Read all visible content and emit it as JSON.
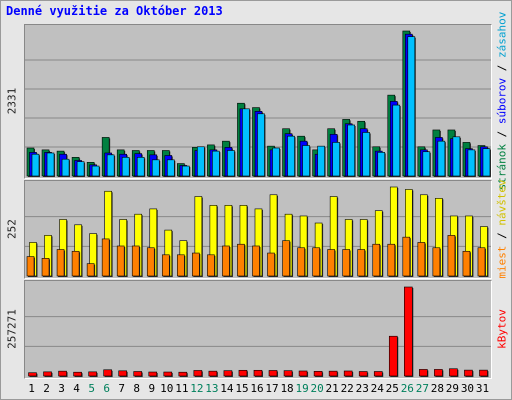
{
  "title": "Denné využitie za Október 2013",
  "colors": {
    "title": "#0000ff",
    "pages": "#008040",
    "files": "#0000ff",
    "hits": "#00c0ff",
    "visits": "#ff8000",
    "sites": "#ffff00",
    "kbytes": "#ff0000",
    "weekend": "#00805c",
    "weekday": "#000000"
  },
  "legend": {
    "pages": "stránok",
    "files": "súborov",
    "hits": "zásahov",
    "visits": "návštev",
    "sites": "miest",
    "kbytes": "kBytov",
    "sep": "/"
  },
  "chart_data": [
    {
      "type": "bar",
      "title": "Denné využitie za Október 2013",
      "categories": [
        "1",
        "2",
        "3",
        "4",
        "5",
        "6",
        "7",
        "8",
        "9",
        "10",
        "11",
        "12",
        "13",
        "14",
        "15",
        "16",
        "17",
        "18",
        "19",
        "20",
        "21",
        "22",
        "23",
        "24",
        "25",
        "26",
        "27",
        "28",
        "29",
        "30",
        "31"
      ],
      "ymax_label": "2331",
      "ylim": [
        0,
        2331
      ],
      "grid": true,
      "legend_placement": "right",
      "series": [
        {
          "name": "stránok",
          "values": [
            450,
            420,
            400,
            300,
            220,
            620,
            420,
            410,
            410,
            410,
            200,
            460,
            500,
            560,
            1170,
            1100,
            480,
            760,
            640,
            420,
            760,
            910,
            880,
            470,
            1300,
            2331,
            470,
            740,
            740,
            540,
            490
          ]
        },
        {
          "name": "súborov",
          "values": [
            380,
            380,
            350,
            250,
            180,
            370,
            350,
            360,
            340,
            330,
            170,
            410,
            420,
            460,
            1080,
            1040,
            420,
            680,
            560,
            350,
            670,
            840,
            760,
            400,
            1200,
            2280,
            420,
            620,
            600,
            440,
            470
          ]
        },
        {
          "name": "zásahov",
          "values": [
            350,
            370,
            270,
            230,
            160,
            340,
            300,
            300,
            260,
            260,
            160,
            470,
            400,
            410,
            1080,
            1000,
            450,
            640,
            490,
            480,
            540,
            820,
            700,
            380,
            1140,
            2240,
            390,
            560,
            630,
            420,
            440
          ]
        }
      ]
    },
    {
      "type": "bar",
      "categories": [
        "1",
        "2",
        "3",
        "4",
        "5",
        "6",
        "7",
        "8",
        "9",
        "10",
        "11",
        "12",
        "13",
        "14",
        "15",
        "16",
        "17",
        "18",
        "19",
        "20",
        "21",
        "22",
        "23",
        "24",
        "25",
        "26",
        "27",
        "28",
        "29",
        "30",
        "31"
      ],
      "ymax_label": "252",
      "ylim": [
        0,
        252
      ],
      "grid": true,
      "series": [
        {
          "name": "miest",
          "values": [
            95,
            115,
            160,
            145,
            120,
            240,
            160,
            175,
            190,
            130,
            100,
            225,
            200,
            200,
            200,
            190,
            230,
            175,
            170,
            150,
            225,
            160,
            160,
            185,
            252,
            245,
            230,
            220,
            170,
            170,
            140
          ]
        },
        {
          "name": "návštev",
          "values": [
            55,
            50,
            75,
            70,
            35,
            105,
            85,
            85,
            80,
            60,
            60,
            65,
            60,
            85,
            90,
            85,
            65,
            100,
            80,
            80,
            75,
            75,
            75,
            90,
            90,
            110,
            95,
            80,
            115,
            70,
            80
          ]
        }
      ]
    },
    {
      "type": "bar",
      "categories": [
        "1",
        "2",
        "3",
        "4",
        "5",
        "6",
        "7",
        "8",
        "9",
        "10",
        "11",
        "12",
        "13",
        "14",
        "15",
        "16",
        "17",
        "18",
        "19",
        "20",
        "21",
        "22",
        "23",
        "24",
        "25",
        "26",
        "27",
        "28",
        "29",
        "30",
        "31"
      ],
      "ymax_label": "257271",
      "ylim": [
        0,
        257271
      ],
      "grid": true,
      "series": [
        {
          "name": "kBytov",
          "values": [
            9500,
            12000,
            14000,
            11000,
            12000,
            18000,
            15000,
            13000,
            11500,
            11500,
            11000,
            16000,
            14000,
            15500,
            16500,
            16500,
            16000,
            15500,
            14500,
            13500,
            14000,
            14500,
            13000,
            13000,
            115000,
            257271,
            19000,
            19000,
            21000,
            17000,
            17000
          ]
        }
      ]
    }
  ],
  "weekend_days": [
    5,
    6,
    12,
    13,
    19,
    20,
    26,
    27
  ]
}
